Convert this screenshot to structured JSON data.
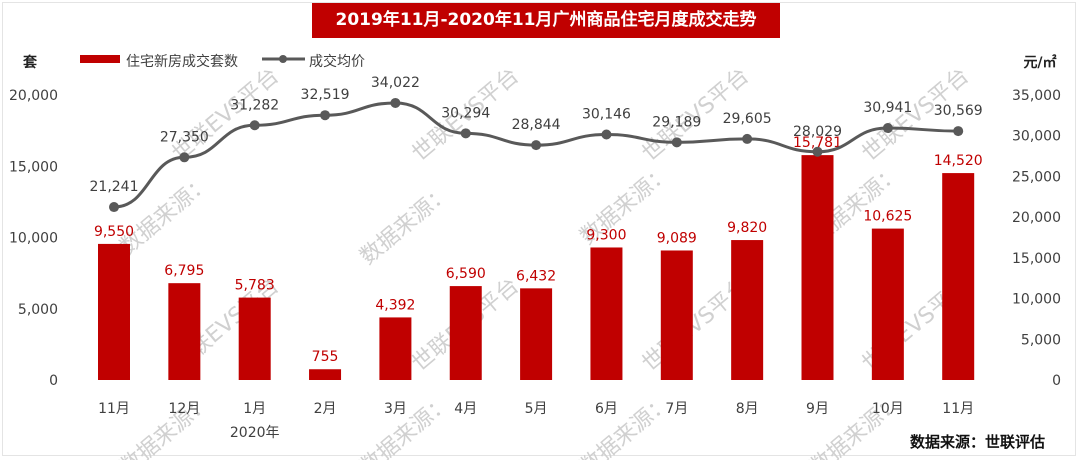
{
  "chart_data": {
    "type": "bar+line",
    "title": "2019年11月-2020年11月广州商品住宅月度成交走势",
    "left_axis_unit": "套",
    "right_axis_unit": "元/㎡",
    "categories": [
      "11月",
      "12月",
      "1月",
      "2月",
      "3月",
      "4月",
      "5月",
      "6月",
      "7月",
      "8月",
      "9月",
      "10月",
      "11月"
    ],
    "category_sublabels": {
      "2": "2020年"
    },
    "left_ylim": [
      0,
      20000
    ],
    "left_ticks": [
      "0",
      "5,000",
      "10,000",
      "15,000",
      "20,000"
    ],
    "right_ylim": [
      0,
      35000
    ],
    "right_ticks": [
      "0",
      "5,000",
      "10,000",
      "15,000",
      "20,000",
      "25,000",
      "30,000",
      "35,000"
    ],
    "grid": false,
    "legend_position": "top-left",
    "series": [
      {
        "name": "住宅新房成交套数",
        "kind": "bar",
        "axis": "left",
        "color": "#c00000",
        "values": [
          9550,
          6795,
          5783,
          755,
          4392,
          6590,
          6432,
          9300,
          9089,
          9820,
          15781,
          10625,
          14520
        ],
        "labels": [
          "9,550",
          "6,795",
          "5,783",
          "755",
          "4,392",
          "6,590",
          "6,432",
          "9,300",
          "9,089",
          "9,820",
          "15,781",
          "10,625",
          "14,520"
        ]
      },
      {
        "name": "成交均价",
        "kind": "line",
        "axis": "right",
        "color": "#595959",
        "values": [
          21241,
          27350,
          31282,
          32519,
          34022,
          30294,
          28844,
          30146,
          29189,
          29605,
          28029,
          30941,
          30569
        ],
        "labels": [
          "21,241",
          "27,350",
          "31,282",
          "32,519",
          "34,022",
          "30,294",
          "28,844",
          "30,146",
          "29,189",
          "29,605",
          "28,029",
          "30,941",
          "30,569"
        ]
      }
    ],
    "source": "数据来源：世联评估"
  },
  "watermark": {
    "platform": "世联EVS平台",
    "source": "数据来源："
  }
}
